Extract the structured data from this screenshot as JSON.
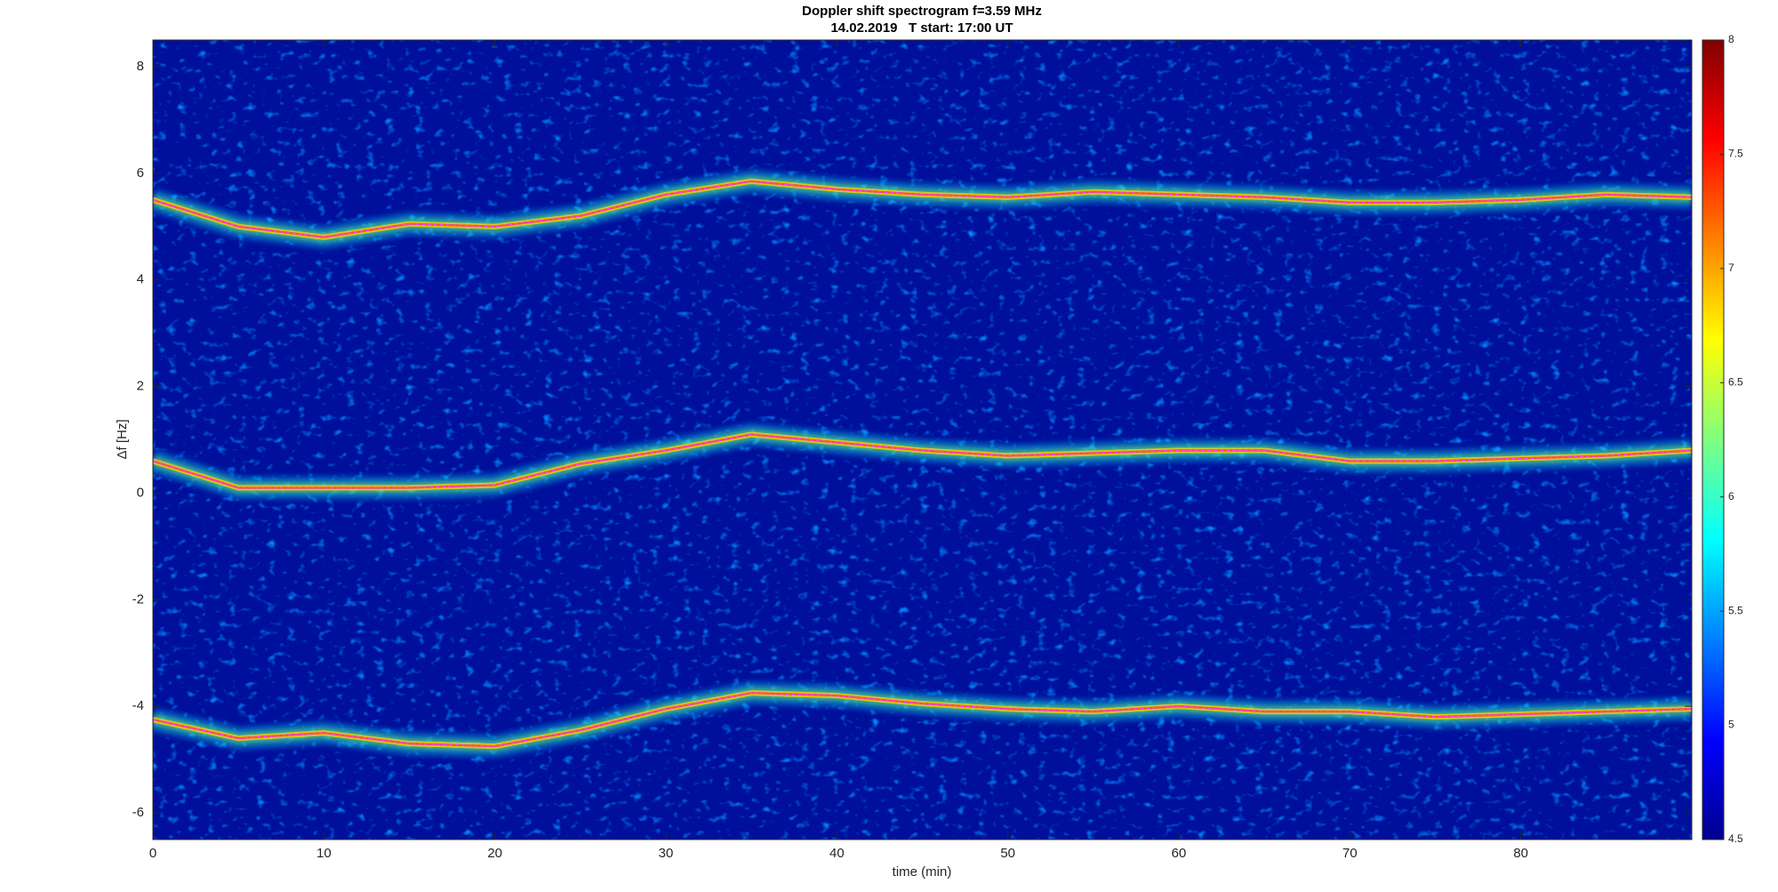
{
  "chart_data": {
    "type": "spectrogram",
    "title": "Doppler shift spectrogram f=3.59 MHz",
    "subtitle": "14.02.2019   T start: 17:00 UT",
    "x_label": "time (min)",
    "y_label": "Δf [Hz]",
    "xlim": [
      0,
      90
    ],
    "xticks": [
      0,
      10,
      20,
      30,
      40,
      50,
      60,
      70,
      80
    ],
    "ylim": [
      -6.5,
      8.5
    ],
    "yticks": [
      -6,
      -4,
      -2,
      0,
      2,
      4,
      6,
      8
    ],
    "x": [
      0,
      5,
      10,
      15,
      20,
      25,
      30,
      35,
      40,
      45,
      50,
      55,
      60,
      65,
      70,
      75,
      80,
      85,
      90
    ],
    "series": [
      {
        "color": "#ff40ff",
        "values": [
          5.5,
          5.0,
          4.8,
          5.05,
          5.0,
          5.2,
          5.6,
          5.85,
          5.7,
          5.6,
          5.55,
          5.65,
          5.6,
          5.55,
          5.45,
          5.45,
          5.5,
          5.6,
          5.55
        ]
      },
      {
        "color": "#ff40ff",
        "values": [
          0.6,
          0.1,
          0.1,
          0.1,
          0.15,
          0.55,
          0.8,
          1.1,
          0.95,
          0.8,
          0.7,
          0.75,
          0.8,
          0.8,
          0.6,
          0.6,
          0.65,
          0.7,
          0.8
        ]
      },
      {
        "color": "#ff40ff",
        "values": [
          -4.25,
          -4.6,
          -4.5,
          -4.7,
          -4.75,
          -4.45,
          -4.05,
          -3.75,
          -3.8,
          -3.95,
          -4.05,
          -4.1,
          -4.0,
          -4.1,
          -4.1,
          -4.2,
          -4.15,
          -4.1,
          -4.05
        ]
      }
    ],
    "clim": [
      4.5,
      8
    ],
    "cticks": [
      4.5,
      5,
      5.5,
      6,
      6.5,
      7,
      7.5,
      8
    ]
  }
}
